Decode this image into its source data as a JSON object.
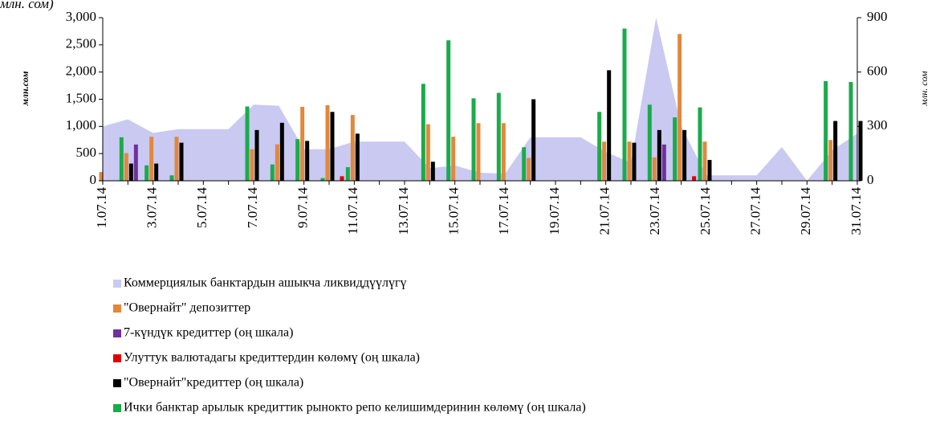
{
  "chart_data": {
    "type": "bar",
    "annotation": "млн. сом)",
    "y_label": "млн.сом",
    "y2_label": "млн. сом",
    "categories": [
      "1.07.14",
      null,
      "3.07.14",
      null,
      "5.07.14",
      null,
      "7.07.14",
      null,
      "9.07.14",
      null,
      "11.07.14",
      null,
      "13.07.14",
      null,
      "15.07.14",
      null,
      "17.07.14",
      null,
      "19.07.14",
      null,
      "21.07.14",
      null,
      "23.07.14",
      null,
      "25.07.14",
      null,
      "27.07.14",
      null,
      "29.07.14",
      null,
      "31.07.14"
    ],
    "ylim": [
      0,
      3000
    ],
    "yticks": [
      0,
      500,
      {
        "value": 1000,
        "label": "1,000"
      },
      {
        "value": 1500,
        "label": "1,500"
      },
      {
        "value": 2000,
        "label": "2,000"
      },
      {
        "value": 2500,
        "label": "2,500"
      },
      {
        "value": 3000,
        "label": "3,000"
      }
    ],
    "y2lim": [
      0,
      900
    ],
    "y2ticks": [
      0,
      300,
      600,
      900
    ],
    "series": [
      {
        "name": "Коммерциялык банктардын ашыкча ликвиддүүлүгү",
        "kind": "area",
        "color": "#c9c9f2",
        "values": [
          1000,
          1130,
          880,
          950,
          950,
          950,
          1400,
          1380,
          580,
          580,
          720,
          720,
          720,
          230,
          280,
          150,
          130,
          800,
          800,
          800,
          530,
          330,
          3000,
          1000,
          100,
          100,
          100,
          620,
          0,
          560,
          870
        ]
      },
      {
        "name": "\"Овернайт\" депозиттер",
        "color": "#e0883c",
        "values": [
          160,
          510,
          810,
          810,
          0,
          0,
          580,
          670,
          1360,
          1390,
          1210,
          0,
          0,
          1040,
          810,
          1060,
          1060,
          420,
          0,
          0,
          720,
          720,
          430,
          2700,
          720,
          0,
          0,
          0,
          0,
          750,
          0
        ]
      },
      {
        "name": "7-күндүк кредиттер (оң шкала)",
        "color": "#7030a0",
        "axis": "y2",
        "values": [
          0,
          200,
          0,
          0,
          0,
          0,
          0,
          0,
          0,
          0,
          0,
          0,
          0,
          0,
          0,
          0,
          0,
          0,
          0,
          0,
          0,
          0,
          200,
          0,
          0,
          0,
          0,
          0,
          0,
          0,
          0
        ]
      },
      {
        "name": "Улуттук валютадагы кредиттердин көлөмү (оң шкала)",
        "color": "#e00000",
        "axis": "y2",
        "values": [
          0,
          0,
          0,
          0,
          0,
          0,
          0,
          0,
          0,
          25,
          0,
          0,
          0,
          0,
          0,
          0,
          0,
          0,
          0,
          0,
          0,
          0,
          0,
          25,
          0,
          0,
          0,
          0,
          0,
          0,
          0
        ]
      },
      {
        "name": "\"Овернайт\"кредиттер (оң шкала)",
        "color": "#000000",
        "axis": "y2",
        "values": [
          0,
          95,
          95,
          210,
          0,
          0,
          280,
          320,
          220,
          380,
          260,
          0,
          0,
          105,
          0,
          0,
          0,
          450,
          0,
          0,
          610,
          210,
          280,
          280,
          115,
          0,
          0,
          0,
          0,
          330,
          330
        ]
      },
      {
        "name": "Ички банктар арылык кредиттик рынокто репо келишимдеринин көлөмү (оң шкала)",
        "color": "#1aab4a",
        "axis": "y2",
        "values": [
          0,
          240,
          85,
          30,
          0,
          0,
          410,
          90,
          230,
          15,
          75,
          0,
          0,
          535,
          775,
          455,
          485,
          185,
          0,
          0,
          380,
          840,
          420,
          350,
          405,
          0,
          0,
          0,
          0,
          550,
          545
        ]
      }
    ]
  }
}
